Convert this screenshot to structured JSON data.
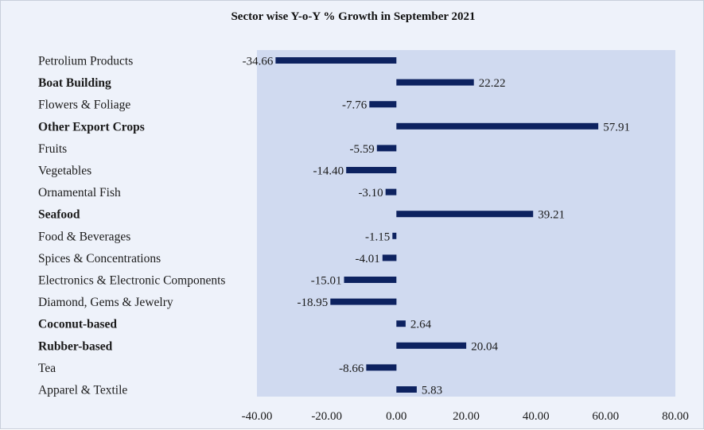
{
  "chart_data": {
    "type": "bar",
    "orientation": "horizontal",
    "title": "Sector wise Y-o-Y % Growth in September 2021",
    "categories": [
      "Petrolium Products",
      "Boat Building",
      "Flowers & Foliage",
      "Other Export Crops",
      "Fruits",
      "Vegetables",
      "Ornamental Fish",
      "Seafood",
      "Food & Beverages",
      "Spices & Concentrations",
      "Electronics & Electronic Components",
      "Diamond, Gems &  Jewelry",
      "Coconut-based",
      "Rubber-based",
      "Tea",
      "Apparel & Textile"
    ],
    "bold_categories": [
      "Boat Building",
      "Other Export Crops",
      "Seafood",
      "Coconut-based",
      "Rubber-based"
    ],
    "values": [
      -34.66,
      22.22,
      -7.76,
      57.91,
      -5.59,
      -14.4,
      -3.1,
      39.21,
      -1.15,
      -4.01,
      -15.01,
      -18.95,
      2.64,
      20.04,
      -8.66,
      5.83
    ],
    "value_labels": [
      "-34.66",
      "22.22",
      "-7.76",
      "57.91",
      "-5.59",
      "-14.40",
      "-3.10",
      "39.21",
      "-1.15",
      "-4.01",
      "-15.01",
      "-18.95",
      "2.64",
      "20.04",
      "-8.66",
      "5.83"
    ],
    "xlim": [
      -40,
      80
    ],
    "xticks": [
      -40,
      -20,
      0,
      20,
      40,
      60,
      80
    ],
    "xtick_labels": [
      "-40.00",
      "-20.00",
      "0.00",
      "20.00",
      "40.00",
      "60.00",
      "80.00"
    ],
    "xlabel": "",
    "ylabel": "",
    "grid": false,
    "legend": "none"
  },
  "colors": {
    "bar": "#0d2260",
    "plot_background": "#d0daf0",
    "chart_background": "#eef2fa"
  }
}
